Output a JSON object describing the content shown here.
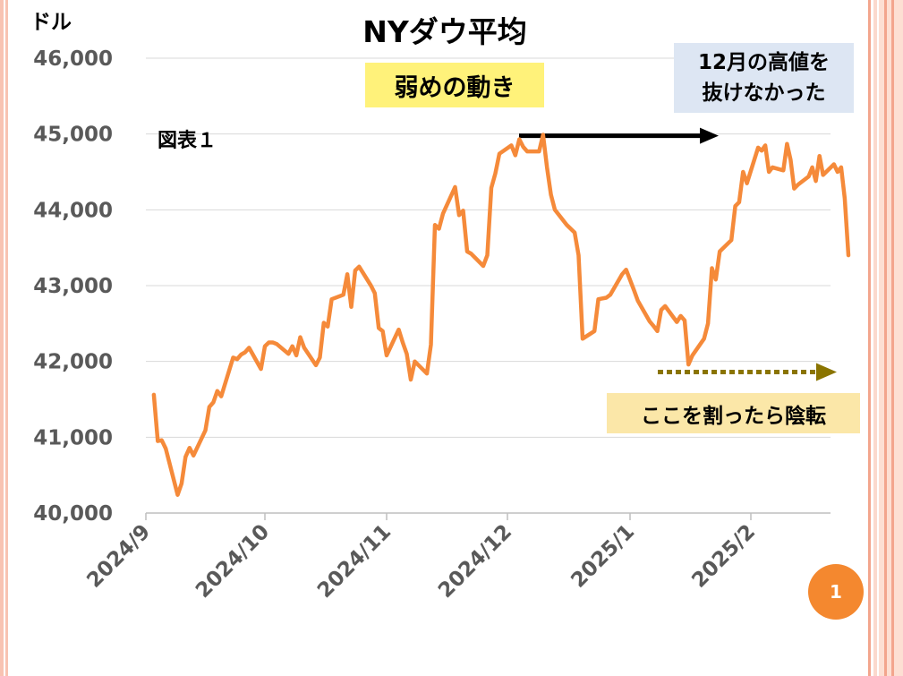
{
  "chart_data": {
    "type": "line",
    "title": "NYダウ平均",
    "ylabel": "ドル",
    "ylim": [
      40000,
      46000
    ],
    "y_ticks": [
      "40,000",
      "41,000",
      "42,000",
      "43,000",
      "44,000",
      "45,000",
      "46,000"
    ],
    "x_ticks": [
      "2024/9",
      "2024/10",
      "2024/11",
      "2024/12",
      "2025/1",
      "2025/2"
    ],
    "grid": true,
    "legend": "none",
    "line_color": "#f58a3a",
    "series": [
      {
        "values": [
          [
            "2024-09-03",
            41560
          ],
          [
            "2024-09-04",
            40950
          ],
          [
            "2024-09-05",
            40960
          ],
          [
            "2024-09-06",
            40850
          ],
          [
            "2024-09-09",
            40240
          ],
          [
            "2024-09-10",
            40390
          ],
          [
            "2024-09-11",
            40740
          ],
          [
            "2024-09-12",
            40860
          ],
          [
            "2024-09-13",
            40760
          ],
          [
            "2024-09-16",
            41090
          ],
          [
            "2024-09-17",
            41400
          ],
          [
            "2024-09-18",
            41460
          ],
          [
            "2024-09-19",
            41610
          ],
          [
            "2024-09-20",
            41540
          ],
          [
            "2024-09-23",
            42050
          ],
          [
            "2024-09-24",
            42030
          ],
          [
            "2024-09-25",
            42090
          ],
          [
            "2024-09-26",
            42120
          ],
          [
            "2024-09-27",
            42180
          ],
          [
            "2024-09-30",
            41900
          ],
          [
            "2024-10-01",
            42200
          ],
          [
            "2024-10-02",
            42250
          ],
          [
            "2024-10-03",
            42250
          ],
          [
            "2024-10-04",
            42230
          ],
          [
            "2024-10-07",
            42100
          ],
          [
            "2024-10-08",
            42200
          ],
          [
            "2024-10-09",
            42080
          ],
          [
            "2024-10-10",
            42320
          ],
          [
            "2024-10-11",
            42180
          ],
          [
            "2024-10-14",
            41950
          ],
          [
            "2024-10-15",
            42050
          ],
          [
            "2024-10-16",
            42510
          ],
          [
            "2024-10-17",
            42460
          ],
          [
            "2024-10-18",
            42820
          ],
          [
            "2024-10-21",
            42880
          ],
          [
            "2024-10-22",
            43150
          ],
          [
            "2024-10-23",
            42720
          ],
          [
            "2024-10-24",
            43200
          ],
          [
            "2024-10-25",
            43250
          ],
          [
            "2024-10-28",
            43000
          ],
          [
            "2024-10-29",
            42900
          ],
          [
            "2024-10-30",
            42440
          ],
          [
            "2024-10-31",
            42400
          ],
          [
            "2024-11-01",
            42080
          ],
          [
            "2024-11-04",
            42420
          ],
          [
            "2024-11-05",
            42250
          ],
          [
            "2024-11-06",
            42100
          ],
          [
            "2024-11-07",
            41760
          ],
          [
            "2024-11-08",
            42000
          ],
          [
            "2024-11-11",
            41840
          ],
          [
            "2024-11-12",
            42220
          ],
          [
            "2024-11-13",
            43800
          ],
          [
            "2024-11-14",
            43750
          ],
          [
            "2024-11-15",
            43950
          ],
          [
            "2024-11-18",
            44300
          ],
          [
            "2024-11-19",
            43930
          ],
          [
            "2024-11-20",
            43990
          ],
          [
            "2024-11-21",
            43450
          ],
          [
            "2024-11-22",
            43420
          ],
          [
            "2024-11-25",
            43260
          ],
          [
            "2024-11-26",
            43400
          ],
          [
            "2024-11-27",
            44290
          ],
          [
            "2024-11-28",
            44480
          ],
          [
            "2024-11-29",
            44740
          ],
          [
            "2024-12-02",
            44850
          ],
          [
            "2024-12-03",
            44720
          ],
          [
            "2024-12-04",
            44930
          ],
          [
            "2024-12-05",
            44830
          ],
          [
            "2024-12-06",
            44770
          ],
          [
            "2024-12-09",
            44770
          ],
          [
            "2024-12-10",
            44990
          ],
          [
            "2024-12-11",
            44560
          ],
          [
            "2024-12-12",
            44200
          ],
          [
            "2024-12-13",
            44000
          ],
          [
            "2024-12-16",
            43800
          ],
          [
            "2024-12-17",
            43750
          ],
          [
            "2024-12-18",
            43700
          ],
          [
            "2024-12-19",
            43400
          ],
          [
            "2024-12-20",
            42300
          ],
          [
            "2024-12-23",
            42400
          ],
          [
            "2024-12-24",
            42820
          ],
          [
            "2024-12-26",
            42840
          ],
          [
            "2024-12-27",
            42880
          ],
          [
            "2024-12-30",
            43150
          ],
          [
            "2024-12-31",
            43210
          ],
          [
            "2025-01-02",
            42940
          ],
          [
            "2025-01-03",
            42800
          ],
          [
            "2025-01-06",
            42530
          ],
          [
            "2025-01-07",
            42470
          ],
          [
            "2025-01-08",
            42400
          ],
          [
            "2025-01-09",
            42680
          ],
          [
            "2025-01-10",
            42730
          ],
          [
            "2025-01-13",
            42520
          ],
          [
            "2025-01-14",
            42600
          ],
          [
            "2025-01-15",
            42540
          ],
          [
            "2025-01-16",
            41960
          ],
          [
            "2025-01-17",
            42080
          ],
          [
            "2025-01-20",
            42300
          ],
          [
            "2025-01-21",
            42500
          ],
          [
            "2025-01-22",
            43230
          ],
          [
            "2025-01-23",
            43080
          ],
          [
            "2025-01-24",
            43450
          ],
          [
            "2025-01-27",
            43600
          ],
          [
            "2025-01-28",
            44050
          ],
          [
            "2025-01-29",
            44100
          ],
          [
            "2025-01-30",
            44500
          ],
          [
            "2025-01-31",
            44350
          ],
          [
            "2025-02-03",
            44820
          ],
          [
            "2025-02-04",
            44780
          ],
          [
            "2025-02-05",
            44850
          ],
          [
            "2025-02-06",
            44500
          ],
          [
            "2025-02-07",
            44560
          ],
          [
            "2025-02-10",
            44520
          ],
          [
            "2025-02-11",
            44870
          ],
          [
            "2025-02-12",
            44660
          ],
          [
            "2025-02-13",
            44280
          ],
          [
            "2025-02-14",
            44330
          ],
          [
            "2025-02-17",
            44440
          ],
          [
            "2025-02-18",
            44560
          ],
          [
            "2025-02-19",
            44380
          ],
          [
            "2025-02-20",
            44710
          ],
          [
            "2025-02-21",
            44460
          ],
          [
            "2025-02-24",
            44600
          ],
          [
            "2025-02-25",
            44500
          ],
          [
            "2025-02-26",
            44560
          ],
          [
            "2025-02-27",
            44150
          ],
          [
            "2025-02-28",
            43400
          ]
        ]
      }
    ],
    "annotations": {
      "note_weak": "弱めの動き",
      "note_high_line1": "12月の高値を",
      "note_high_line2": "抜けなかった",
      "note_support": "ここを割ったら陰転"
    },
    "annotation_colors": {
      "weak_bg": "#fff27a",
      "high_bg": "#dde6f3",
      "support_bg": "#fbe7a8",
      "high_arrow": "#000000",
      "support_arrow": "#8a7400"
    }
  },
  "figure_label": "図表１",
  "page_number": "1",
  "frame_colors": [
    "#f7b7a3",
    "#fde3da"
  ]
}
